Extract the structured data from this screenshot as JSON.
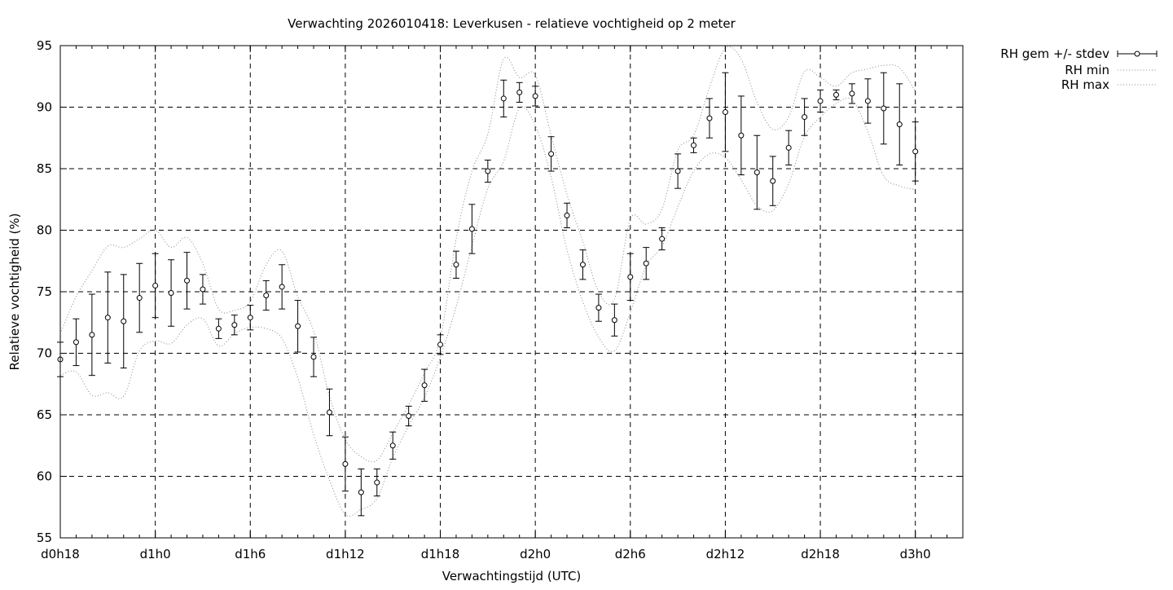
{
  "chart_data": {
    "type": "line",
    "title": "Verwachting 2026010418: Leverkusen - relatieve vochtigheid op 2 meter",
    "xlabel": "Verwachtingstijd (UTC)",
    "ylabel": "Relatieve vochtigheid (%)",
    "ylim": [
      55,
      95
    ],
    "xlim": [
      18,
      75
    ],
    "yticks": [
      55,
      60,
      65,
      70,
      75,
      80,
      85,
      90,
      95
    ],
    "xticks": [
      {
        "x": 18,
        "label": "d0h18"
      },
      {
        "x": 24,
        "label": "d1h0"
      },
      {
        "x": 30,
        "label": "d1h6"
      },
      {
        "x": 36,
        "label": "d1h12"
      },
      {
        "x": 42,
        "label": "d1h18"
      },
      {
        "x": 48,
        "label": "d2h0"
      },
      {
        "x": 54,
        "label": "d2h6"
      },
      {
        "x": 60,
        "label": "d2h12"
      },
      {
        "x": 66,
        "label": "d2h18"
      },
      {
        "x": 72,
        "label": "d3h0"
      }
    ],
    "grid": true,
    "legend_position": "outside-top-right",
    "x": [
      18,
      19,
      20,
      21,
      22,
      23,
      24,
      25,
      26,
      27,
      28,
      29,
      30,
      31,
      32,
      33,
      34,
      35,
      36,
      37,
      38,
      39,
      40,
      41,
      42,
      43,
      44,
      45,
      46,
      47,
      48,
      49,
      50,
      51,
      52,
      53,
      54,
      55,
      56,
      57,
      58,
      59,
      60,
      61,
      62,
      63,
      64,
      65,
      66,
      67,
      68,
      69,
      70,
      71,
      72
    ],
    "series": [
      {
        "name": "RH gem +/- stdev",
        "style": "points-errorbars",
        "values": [
          69.5,
          70.9,
          71.5,
          72.9,
          72.6,
          74.5,
          75.5,
          74.9,
          75.9,
          75.2,
          72.0,
          72.3,
          72.9,
          74.7,
          75.4,
          72.2,
          69.7,
          65.2,
          61.0,
          58.7,
          59.5,
          62.5,
          64.9,
          67.4,
          70.7,
          77.2,
          80.1,
          84.8,
          90.7,
          91.2,
          90.9,
          86.2,
          81.2,
          77.2,
          73.7,
          72.7,
          76.2,
          77.3,
          79.3,
          84.8,
          86.9,
          89.1,
          89.6,
          87.7,
          84.7,
          84.0,
          86.7,
          89.2,
          90.5,
          91.0,
          91.1,
          90.5,
          89.9,
          88.6,
          86.4
        ],
        "errors": [
          1.4,
          1.9,
          3.3,
          3.7,
          3.8,
          2.8,
          2.6,
          2.7,
          2.3,
          1.2,
          0.8,
          0.8,
          1.0,
          1.2,
          1.8,
          2.1,
          1.6,
          1.9,
          2.2,
          1.9,
          1.1,
          1.1,
          0.8,
          1.3,
          0.8,
          1.1,
          2.0,
          0.9,
          1.5,
          0.8,
          0.8,
          1.4,
          1.0,
          1.2,
          1.1,
          1.3,
          1.9,
          1.3,
          0.9,
          1.4,
          0.6,
          1.6,
          3.2,
          3.2,
          3.0,
          2.0,
          1.4,
          1.5,
          0.9,
          0.4,
          0.8,
          1.8,
          2.9,
          3.3,
          2.4
        ]
      },
      {
        "name": "RH min",
        "style": "dotted",
        "values": [
          68.2,
          68.5,
          66.6,
          66.8,
          66.5,
          70.2,
          71.0,
          70.8,
          72.3,
          72.8,
          70.6,
          71.6,
          72.1,
          72.0,
          71.2,
          68.0,
          63.4,
          59.7,
          56.9,
          57.3,
          58.2,
          61.5,
          64.1,
          66.4,
          69.7,
          73.8,
          78.7,
          83.4,
          85.6,
          89.9,
          88.5,
          84.3,
          78.4,
          74.2,
          71.3,
          70.2,
          73.3,
          77.1,
          78.7,
          81.9,
          84.8,
          86.2,
          85.9,
          84.1,
          82.0,
          81.6,
          83.8,
          87.6,
          89.2,
          90.3,
          90.6,
          88.0,
          84.4,
          83.6,
          83.3
        ]
      },
      {
        "name": "RH max",
        "style": "dotted",
        "values": [
          71.6,
          74.6,
          76.7,
          78.7,
          78.6,
          79.3,
          80.0,
          78.6,
          79.4,
          77.3,
          73.6,
          73.5,
          74.2,
          77.2,
          78.3,
          74.6,
          71.8,
          66.5,
          63.0,
          61.6,
          61.3,
          63.5,
          65.8,
          68.4,
          71.2,
          79.3,
          84.8,
          87.8,
          93.9,
          92.4,
          92.6,
          87.7,
          82.9,
          79.1,
          75.0,
          74.4,
          80.9,
          80.5,
          81.7,
          86.5,
          87.7,
          91.6,
          94.8,
          93.9,
          90.4,
          88.2,
          89.2,
          92.9,
          92.4,
          91.7,
          92.8,
          93.1,
          93.4,
          93.2,
          91.3
        ]
      }
    ]
  }
}
